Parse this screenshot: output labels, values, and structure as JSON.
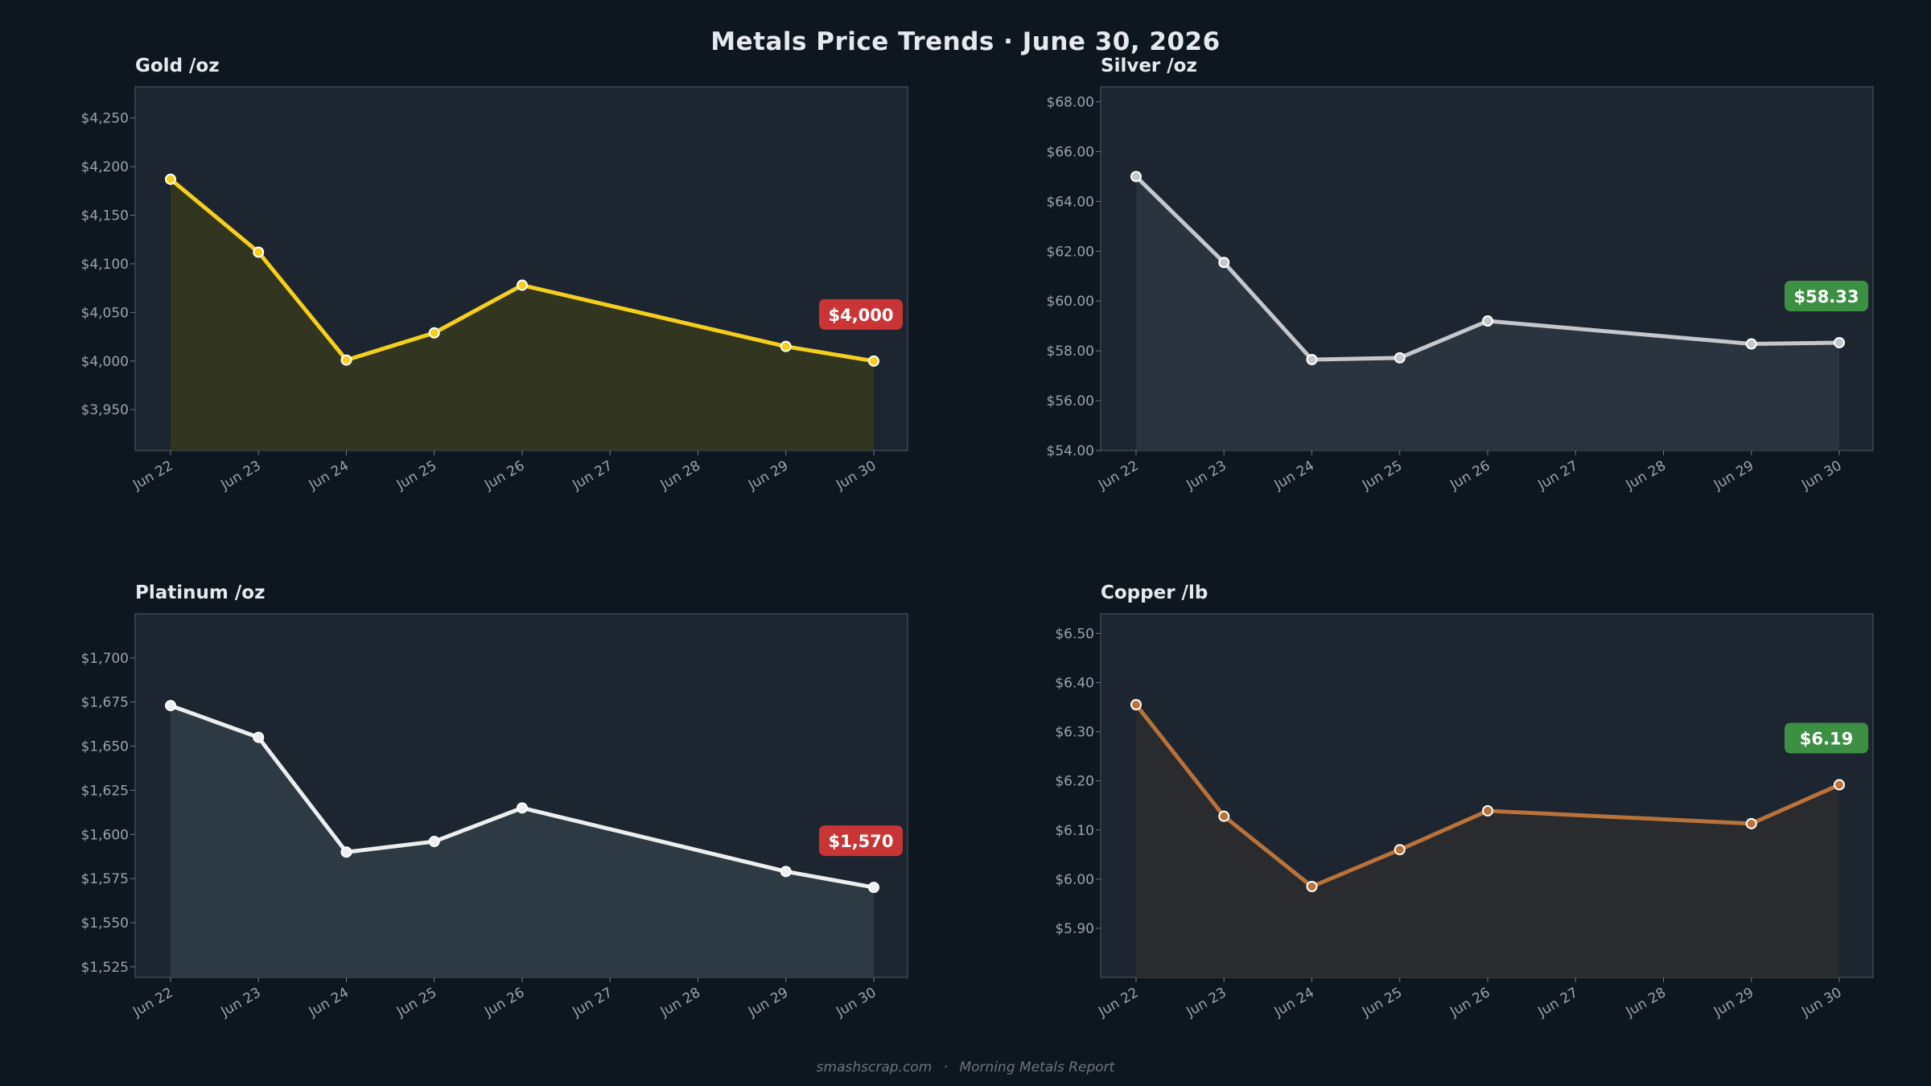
{
  "title": "Metals Price Trends  ·  June 30, 2026",
  "footer": {
    "site": "smashscrap.com",
    "separator": "·",
    "report": "Morning Metals Report"
  },
  "colors": {
    "background": "#0e1720",
    "panel": "#1c2530",
    "up": "#3c8f43",
    "down": "#c93434"
  },
  "chart_data": [
    {
      "type": "area",
      "title": "Gold  /oz",
      "x": [
        "Jun 22",
        "Jun 23",
        "Jun 24",
        "Jun 25",
        "Jun 26",
        "Jun 27",
        "Jun 28",
        "Jun 29",
        "Jun 30"
      ],
      "series": [
        {
          "color": "#f5cf1c",
          "fill": "#34361f",
          "points": [
            {
              "x": "Jun 22",
              "y": 4187
            },
            {
              "x": "Jun 23",
              "y": 4112
            },
            {
              "x": "Jun 24",
              "y": 4001
            },
            {
              "x": "Jun 25",
              "y": 4029
            },
            {
              "x": "Jun 26",
              "y": 4078
            },
            {
              "x": "Jun 29",
              "y": 4015
            },
            {
              "x": "Jun 30",
              "y": 4000
            }
          ]
        }
      ],
      "ylim": [
        3908,
        4282
      ],
      "yticks": [
        3950,
        4000,
        4050,
        4100,
        4150,
        4200,
        4250
      ],
      "ytick_labels": [
        "$3,950",
        "$4,000",
        "$4,050",
        "$4,100",
        "$4,150",
        "$4,200",
        "$4,250"
      ],
      "grid": false,
      "badge": {
        "text": "$4,000",
        "trend": "down"
      }
    },
    {
      "type": "area",
      "title": "Silver  /oz",
      "x": [
        "Jun 22",
        "Jun 23",
        "Jun 24",
        "Jun 25",
        "Jun 26",
        "Jun 27",
        "Jun 28",
        "Jun 29",
        "Jun 30"
      ],
      "series": [
        {
          "color": "#c4c8cc",
          "fill": "#2a3540",
          "points": [
            {
              "x": "Jun 22",
              "y": 65.0
            },
            {
              "x": "Jun 23",
              "y": 61.55
            },
            {
              "x": "Jun 24",
              "y": 57.65
            },
            {
              "x": "Jun 25",
              "y": 57.72
            },
            {
              "x": "Jun 26",
              "y": 59.2
            },
            {
              "x": "Jun 29",
              "y": 58.28
            },
            {
              "x": "Jun 30",
              "y": 58.33
            }
          ]
        }
      ],
      "ylim": [
        54.0,
        68.6
      ],
      "yticks": [
        54,
        56,
        58,
        60,
        62,
        64,
        66,
        68
      ],
      "ytick_labels": [
        "$54.00",
        "$56.00",
        "$58.00",
        "$60.00",
        "$62.00",
        "$64.00",
        "$66.00",
        "$68.00"
      ],
      "grid": false,
      "badge": {
        "text": "$58.33",
        "trend": "up"
      }
    },
    {
      "type": "area",
      "title": "Platinum  /oz",
      "x": [
        "Jun 22",
        "Jun 23",
        "Jun 24",
        "Jun 25",
        "Jun 26",
        "Jun 27",
        "Jun 28",
        "Jun 29",
        "Jun 30"
      ],
      "series": [
        {
          "color": "#eceef0",
          "fill": "#2e3a45",
          "points": [
            {
              "x": "Jun 22",
              "y": 1673
            },
            {
              "x": "Jun 23",
              "y": 1655
            },
            {
              "x": "Jun 24",
              "y": 1590
            },
            {
              "x": "Jun 25",
              "y": 1596
            },
            {
              "x": "Jun 26",
              "y": 1615
            },
            {
              "x": "Jun 29",
              "y": 1579
            },
            {
              "x": "Jun 30",
              "y": 1570
            }
          ]
        }
      ],
      "ylim": [
        1519,
        1725
      ],
      "yticks": [
        1525,
        1550,
        1575,
        1600,
        1625,
        1650,
        1675,
        1700
      ],
      "ytick_labels": [
        "$1,525",
        "$1,550",
        "$1,575",
        "$1,600",
        "$1,625",
        "$1,650",
        "$1,675",
        "$1,700"
      ],
      "grid": false,
      "badge": {
        "text": "$1,570",
        "trend": "down"
      }
    },
    {
      "type": "area",
      "title": "Copper  /lb",
      "x": [
        "Jun 22",
        "Jun 23",
        "Jun 24",
        "Jun 25",
        "Jun 26",
        "Jun 27",
        "Jun 28",
        "Jun 29",
        "Jun 30"
      ],
      "series": [
        {
          "color": "#b9723a",
          "fill": "#2a2b2e",
          "points": [
            {
              "x": "Jun 22",
              "y": 6.355
            },
            {
              "x": "Jun 23",
              "y": 6.128
            },
            {
              "x": "Jun 24",
              "y": 5.985
            },
            {
              "x": "Jun 25",
              "y": 6.06
            },
            {
              "x": "Jun 26",
              "y": 6.139
            },
            {
              "x": "Jun 29",
              "y": 6.113
            },
            {
              "x": "Jun 30",
              "y": 6.192
            }
          ]
        }
      ],
      "ylim": [
        5.8,
        6.54
      ],
      "yticks": [
        5.9,
        6.0,
        6.1,
        6.2,
        6.3,
        6.4,
        6.5
      ],
      "ytick_labels": [
        "$5.90",
        "$6.00",
        "$6.10",
        "$6.20",
        "$6.30",
        "$6.40",
        "$6.50"
      ],
      "grid": false,
      "badge": {
        "text": "$6.19",
        "trend": "up"
      }
    }
  ]
}
